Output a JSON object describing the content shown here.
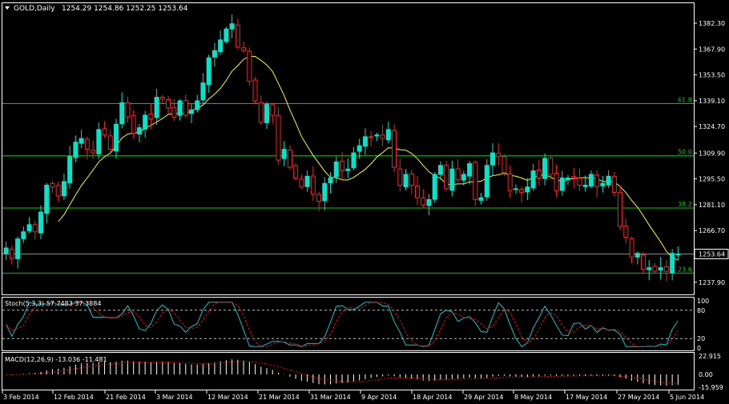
{
  "header": {
    "symbol": "GOLD,Daily",
    "ohlc": "1254.29 1254.86 1252.25 1253.64"
  },
  "colors": {
    "background": "#000000",
    "frame": "#ffffff",
    "bull": "#00e5cc",
    "bear": "#ff2020",
    "ma": "#ffff00",
    "fib": "#00cc00",
    "stoch_main": "#00c8d2",
    "stoch_signal": "#ff0000",
    "macd_hist": "#ffffff",
    "macd_signal": "#ff0000"
  },
  "chart_data": [
    {
      "type": "candlestick",
      "title": "GOLD,Daily",
      "ylim": [
        1232,
        1393
      ],
      "y_ticks": [
        "1382.30",
        "1367.90",
        "1353.50",
        "1339.10",
        "1324.70",
        "1309.90",
        "1295.50",
        "1281.10",
        "1266.70",
        "1253.64",
        "1237.90"
      ],
      "x_labels": [
        "3 Feb 2014",
        "12 Feb 2014",
        "21 Feb 2014",
        "3 Mar 2014",
        "12 Mar 2014",
        "21 Mar 2014",
        "31 Mar 2014",
        "9 Apr 2014",
        "18 Apr 2014",
        "29 Apr 2014",
        "8 May 2014",
        "17 May 2014",
        "27 May 2014",
        "5 Jun 2014"
      ],
      "last_price": "1253.64",
      "fib_levels": [
        {
          "label": "61.8",
          "value": 1337.5
        },
        {
          "label": "50.0",
          "value": 1308.4
        },
        {
          "label": "38.2",
          "value": 1279.3
        },
        {
          "label": "23.6",
          "value": 1243.0
        }
      ],
      "close": [
        1257,
        1251,
        1262,
        1266,
        1270,
        1266,
        1277,
        1292,
        1291,
        1286,
        1294,
        1308,
        1316,
        1318,
        1312,
        1310,
        1323,
        1320,
        1312,
        1326,
        1338,
        1330,
        1321,
        1324,
        1331,
        1329,
        1341,
        1340,
        1335,
        1330,
        1339,
        1331,
        1334,
        1339,
        1349,
        1363,
        1367,
        1373,
        1379,
        1382,
        1369,
        1367,
        1350,
        1339,
        1327,
        1337,
        1331,
        1306,
        1312,
        1302,
        1296,
        1291,
        1297,
        1287,
        1283,
        1293,
        1296,
        1305,
        1300,
        1301,
        1310,
        1314,
        1319,
        1319,
        1320,
        1318,
        1323,
        1302,
        1292,
        1298,
        1292,
        1285,
        1281,
        1284,
        1298,
        1303,
        1290,
        1301,
        1295,
        1298,
        1304,
        1284,
        1285,
        1303,
        1310,
        1308,
        1299,
        1289,
        1290,
        1288,
        1291,
        1300,
        1296,
        1307,
        1298,
        1289,
        1296,
        1296,
        1296,
        1292,
        1292,
        1298,
        1291,
        1293,
        1297,
        1288,
        1269,
        1263,
        1252,
        1254,
        1245,
        1246,
        1244,
        1246,
        1244,
        1254,
        1253.64
      ],
      "ma_period": 10,
      "stochastic": {
        "label": "Stoch(5,3,3) 57.7483 37.3884",
        "main": 57.7483,
        "signal": 37.3884,
        "ylim": [
          0,
          100
        ],
        "levels": [
          20,
          80
        ],
        "ticks": [
          "100",
          "80",
          "20",
          "0"
        ]
      },
      "macd": {
        "label": "MACD(12,26,9) -13.036 -11.481",
        "main": -13.036,
        "signal": -11.481,
        "ticks": [
          "22.915",
          "0.00",
          "-15.959"
        ],
        "ylim": [
          -18,
          25
        ]
      }
    }
  ]
}
